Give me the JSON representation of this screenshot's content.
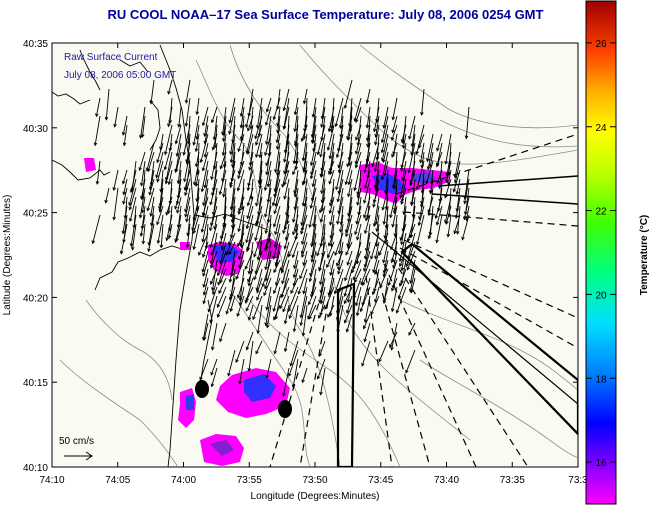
{
  "title": "RU COOL  NOAA–17  Sea Surface Temperature:  July 08, 2006 0254 GMT",
  "colors": {
    "title": "#00009a",
    "land": "#fafaf2",
    "outline": "#000000",
    "bathymetry": "#8c8c8c",
    "annotation": "#1a1aa8",
    "sst_cold": "#ff00ff",
    "sst_mid": "#4040e0",
    "sst_warm": "#3030ff"
  },
  "map": {
    "xlabel": "Longitude (Degrees:Minutes)",
    "ylabel": "Latitude (Degrees:Minutes)",
    "lon_ticks": [
      "74:10",
      "74:05",
      "74:00",
      "73:55",
      "73:50",
      "73:45",
      "73:40",
      "73:35",
      "73:3"
    ],
    "lat_ticks": [
      "40:35",
      "40:30",
      "40:25",
      "40:20",
      "40:15",
      "40:10"
    ],
    "annotation_line1": "Raw Surface Current",
    "annotation_line2": "July 08, 2006 05:00 GMT",
    "scale_label": "50 cm/s"
  },
  "colorbar": {
    "label": "Temperature (°C)",
    "ticks": [
      "26",
      "24",
      "22",
      "20",
      "18",
      "16"
    ],
    "range": [
      15,
      27
    ]
  }
}
